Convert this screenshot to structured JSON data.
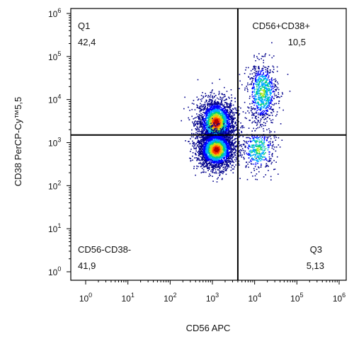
{
  "chart_data": {
    "type": "scatter",
    "subtype": "flow-cytometry-density-dot-plot",
    "xlabel": "CD56 APC",
    "ylabel": "CD38 PerCP-Cy™5,5",
    "x_scale": "log",
    "y_scale": "log",
    "xlim": [
      1,
      1000000
    ],
    "ylim": [
      1,
      1000000
    ],
    "x_ticks": [
      {
        "value": 1,
        "base": "10",
        "exp": "0"
      },
      {
        "value": 10,
        "base": "10",
        "exp": "1"
      },
      {
        "value": 100,
        "base": "10",
        "exp": "2"
      },
      {
        "value": 1000,
        "base": "10",
        "exp": "3"
      },
      {
        "value": 10000,
        "base": "10",
        "exp": "4"
      },
      {
        "value": 100000,
        "base": "10",
        "exp": "5"
      },
      {
        "value": 1000000,
        "base": "10",
        "exp": "6"
      }
    ],
    "y_ticks": [
      {
        "value": 1,
        "base": "10",
        "exp": "0"
      },
      {
        "value": 10,
        "base": "10",
        "exp": "1"
      },
      {
        "value": 100,
        "base": "10",
        "exp": "2"
      },
      {
        "value": 1000,
        "base": "10",
        "exp": "3"
      },
      {
        "value": 10000,
        "base": "10",
        "exp": "4"
      },
      {
        "value": 100000,
        "base": "10",
        "exp": "5"
      },
      {
        "value": 1000000,
        "base": "10",
        "exp": "6"
      }
    ],
    "gates": {
      "x": 4000,
      "y": 1500
    },
    "quadrants": [
      {
        "name": "Q1",
        "value": "42,4",
        "position": "top-left"
      },
      {
        "name": "CD56+CD38+",
        "value": "10,5",
        "position": "top-right"
      },
      {
        "name": "CD56-CD38-",
        "value": "41,9",
        "position": "bottom-left"
      },
      {
        "name": "Q3",
        "value": "5,13",
        "position": "bottom-right"
      }
    ],
    "populations": [
      {
        "center_x": 1200,
        "center_y": 3000,
        "spread_log_x": 0.22,
        "spread_log_y": 0.28,
        "share": 0.4
      },
      {
        "center_x": 1200,
        "center_y": 700,
        "spread_log_x": 0.22,
        "spread_log_y": 0.22,
        "share": 0.4
      },
      {
        "center_x": 15000,
        "center_y": 15000,
        "spread_log_x": 0.18,
        "spread_log_y": 0.35,
        "share": 0.13
      },
      {
        "center_x": 12000,
        "center_y": 700,
        "spread_log_x": 0.2,
        "spread_log_y": 0.25,
        "share": 0.07
      }
    ],
    "density_colors": [
      "#00008b",
      "#0000ff",
      "#00aaff",
      "#00d27a",
      "#b4e61e",
      "#ffb400",
      "#ff3c00",
      "#b40000"
    ],
    "gate_line_color": "#000000"
  }
}
